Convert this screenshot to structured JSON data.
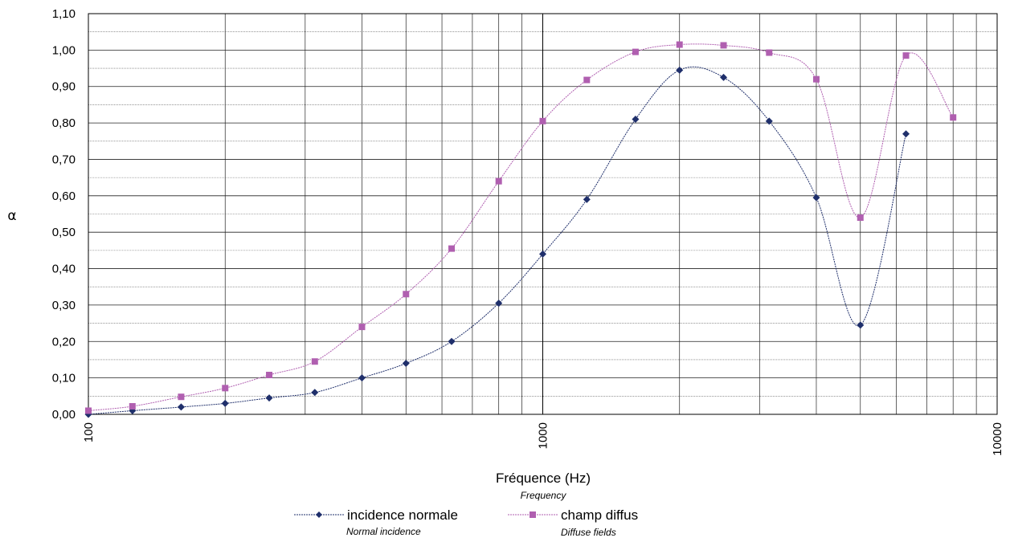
{
  "chart_data": {
    "type": "line",
    "xscale": "log",
    "xlim": [
      100,
      10000
    ],
    "ylim": [
      0,
      1.1
    ],
    "grid": true,
    "legend_position": "bottom",
    "ylabel": "α",
    "xlabel": "Fréquence  (Hz)",
    "xlabel_sub": "Frequency",
    "x_ticks": [
      "100",
      "1000",
      "10000"
    ],
    "y_ticks": [
      "0,00",
      "0,10",
      "0,20",
      "0,30",
      "0,40",
      "0,50",
      "0,60",
      "0,70",
      "0,80",
      "0,90",
      "1,00",
      "1,10"
    ],
    "series": [
      {
        "name": "incidence normale",
        "name_sub": "Normal incidence",
        "color": "#1f2f6b",
        "marker": "diamond",
        "x": [
          100,
          125,
          160,
          200,
          250,
          315,
          400,
          500,
          630,
          800,
          1000,
          1250,
          1600,
          2000,
          2500,
          3150,
          4000,
          5000,
          6300
        ],
        "y": [
          0.0,
          0.01,
          0.02,
          0.03,
          0.045,
          0.06,
          0.1,
          0.14,
          0.2,
          0.305,
          0.44,
          0.59,
          0.81,
          0.945,
          0.925,
          0.805,
          0.595,
          0.245,
          0.77
        ]
      },
      {
        "name": "champ diffus",
        "name_sub": "Diffuse fields",
        "color": "#b05fb0",
        "marker": "square",
        "x": [
          100,
          125,
          160,
          200,
          250,
          315,
          400,
          500,
          630,
          800,
          1000,
          1250,
          1600,
          2000,
          2500,
          3150,
          4000,
          5000,
          6300,
          8000
        ],
        "y": [
          0.01,
          0.022,
          0.048,
          0.072,
          0.108,
          0.145,
          0.24,
          0.33,
          0.455,
          0.64,
          0.805,
          0.918,
          0.995,
          1.015,
          1.013,
          0.993,
          0.92,
          0.54,
          0.985,
          0.815
        ]
      }
    ]
  }
}
